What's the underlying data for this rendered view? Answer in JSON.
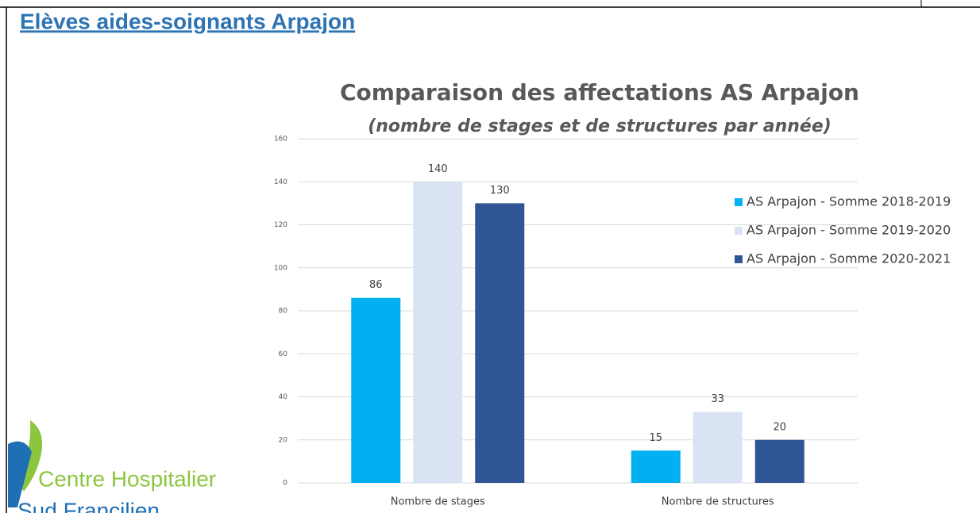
{
  "heading": "Elèves aides-soignants Arpajon",
  "logo": {
    "line1": "Centre Hospitalier",
    "line2": "Sud Francilien"
  },
  "chart_data": {
    "type": "bar",
    "title": "Comparaison des affectations AS Arpajon",
    "subtitle": "(nombre de stages et de structures par année)",
    "categories": [
      "Nombre de stages",
      "Nombre de structures"
    ],
    "series": [
      {
        "name": "AS Arpajon - Somme 2018-2019",
        "color": "#00b0f0",
        "values": [
          86,
          15
        ]
      },
      {
        "name": "AS Arpajon - Somme 2019-2020",
        "color": "#dae3f3",
        "values": [
          140,
          33
        ]
      },
      {
        "name": "AS Arpajon - Somme 2020-2021",
        "color": "#2f5597",
        "values": [
          130,
          20
        ]
      }
    ],
    "ylim": [
      0,
      160
    ],
    "yticks": [
      0,
      20,
      40,
      60,
      80,
      100,
      120,
      140,
      160
    ],
    "grid": true,
    "legend": "right"
  }
}
